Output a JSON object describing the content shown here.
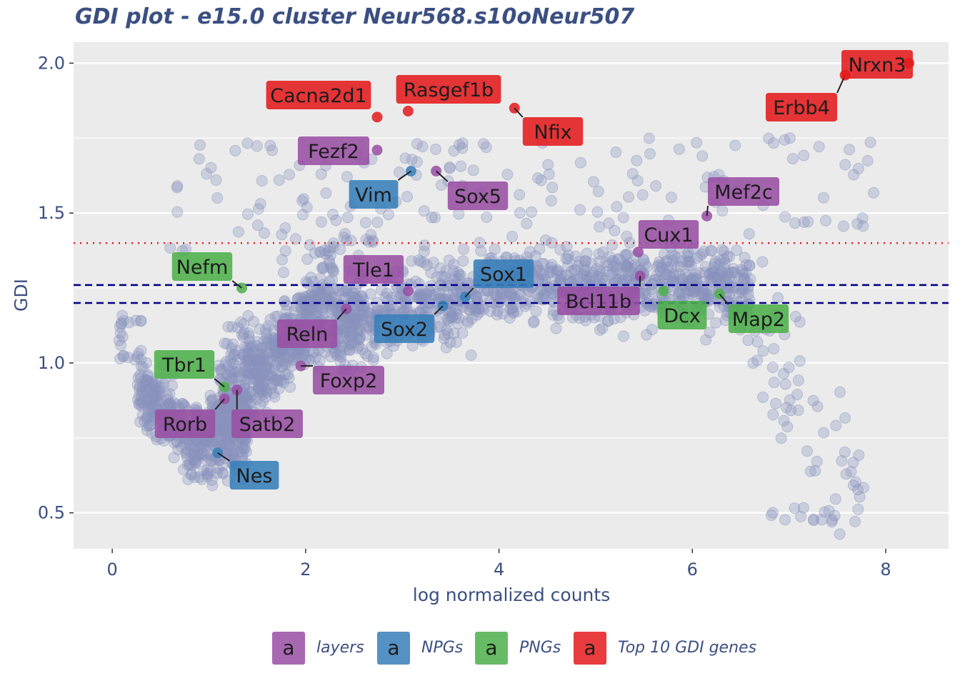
{
  "chart_data": {
    "type": "scatter",
    "title": "GDI plot - e15.0 cluster Neur568.s10oNeur507",
    "xlabel": "log normalized counts",
    "ylabel": "GDI",
    "xlim": [
      -0.4,
      8.65
    ],
    "ylim": [
      0.38,
      2.07
    ],
    "x_ticks": [
      "0",
      "2",
      "4",
      "6",
      "8"
    ],
    "y_ticks": [
      "0.5",
      "1.0",
      "1.5",
      "2.0"
    ],
    "grid": true,
    "legend_position": "bottom",
    "reference_lines": [
      {
        "y": 1.4,
        "style": "dotted",
        "color": "#e41a1c"
      },
      {
        "y": 1.26,
        "style": "dashed",
        "color": "#00008b"
      },
      {
        "y": 1.2,
        "style": "dashed",
        "color": "#00008b"
      }
    ],
    "background_points_color": "#8a93bd",
    "legend": [
      {
        "label": "layers",
        "color": "#984ea3",
        "glyph": "a"
      },
      {
        "label": "NPGs",
        "color": "#377eb8",
        "glyph": "a"
      },
      {
        "label": "PNGs",
        "color": "#4daf4a",
        "glyph": "a"
      },
      {
        "label": "Top 10 GDI genes",
        "color": "#e41a1c",
        "glyph": "a"
      }
    ],
    "highlighted_genes": [
      {
        "gene": "Nrxn3",
        "x": 8.24,
        "y": 2.0,
        "group": "Top 10 GDI genes"
      },
      {
        "gene": "Erbb4",
        "x": 7.58,
        "y": 1.96,
        "group": "Top 10 GDI genes"
      },
      {
        "gene": "Cacna2d1",
        "x": 2.74,
        "y": 1.82,
        "group": "Top 10 GDI genes"
      },
      {
        "gene": "Rasgef1b",
        "x": 3.06,
        "y": 1.84,
        "group": "Top 10 GDI genes"
      },
      {
        "gene": "Nfix",
        "x": 4.16,
        "y": 1.85,
        "group": "Top 10 GDI genes"
      },
      {
        "gene": "Fezf2",
        "x": 2.74,
        "y": 1.71,
        "group": "layers"
      },
      {
        "gene": "Sox5",
        "x": 3.35,
        "y": 1.64,
        "group": "layers"
      },
      {
        "gene": "Mef2c",
        "x": 6.15,
        "y": 1.49,
        "group": "layers"
      },
      {
        "gene": "Cux1",
        "x": 5.44,
        "y": 1.37,
        "group": "layers"
      },
      {
        "gene": "Tle1",
        "x": 3.06,
        "y": 1.24,
        "group": "layers"
      },
      {
        "gene": "Bcl11b",
        "x": 5.46,
        "y": 1.29,
        "group": "layers"
      },
      {
        "gene": "Reln",
        "x": 2.42,
        "y": 1.18,
        "group": "layers"
      },
      {
        "gene": "Foxp2",
        "x": 1.95,
        "y": 0.99,
        "group": "layers"
      },
      {
        "gene": "Satb2",
        "x": 1.29,
        "y": 0.91,
        "group": "layers"
      },
      {
        "gene": "Rorb",
        "x": 1.16,
        "y": 0.88,
        "group": "layers"
      },
      {
        "gene": "Vim",
        "x": 3.09,
        "y": 1.64,
        "group": "NPGs"
      },
      {
        "gene": "Sox1",
        "x": 3.65,
        "y": 1.22,
        "group": "NPGs"
      },
      {
        "gene": "Sox2",
        "x": 3.42,
        "y": 1.19,
        "group": "NPGs"
      },
      {
        "gene": "Nes",
        "x": 1.09,
        "y": 0.7,
        "group": "NPGs"
      },
      {
        "gene": "Nefm",
        "x": 1.34,
        "y": 1.25,
        "group": "PNGs"
      },
      {
        "gene": "Tbr1",
        "x": 1.16,
        "y": 0.92,
        "group": "PNGs"
      },
      {
        "gene": "Dcx",
        "x": 5.7,
        "y": 1.24,
        "group": "PNGs"
      },
      {
        "gene": "Map2",
        "x": 6.28,
        "y": 1.23,
        "group": "PNGs"
      }
    ]
  }
}
